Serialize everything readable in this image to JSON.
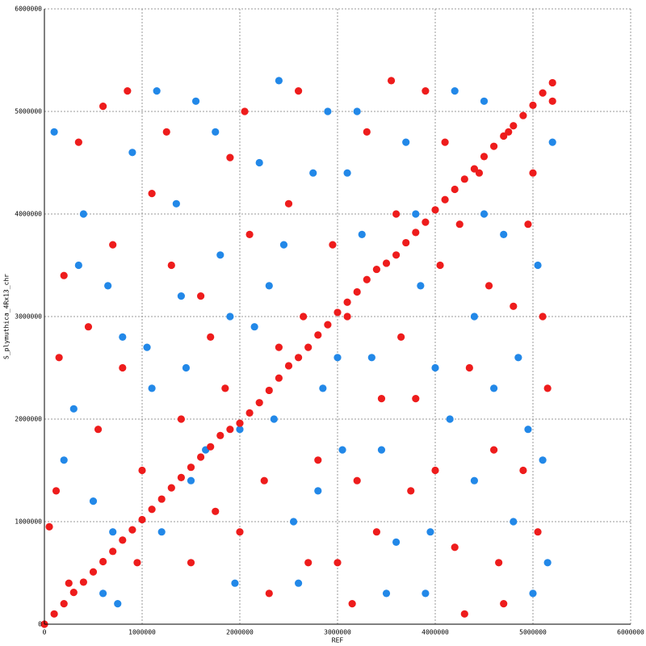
{
  "chart_data": {
    "type": "scatter",
    "x_label": "REF",
    "y_label": "S_plymuthica_4Rx13_chr",
    "xlim": [
      0,
      6000000
    ],
    "ylim": [
      0,
      6000000
    ],
    "xticks": [
      0,
      1000000,
      2000000,
      3000000,
      4000000,
      5000000,
      6000000
    ],
    "yticks": [
      0,
      1000000,
      2000000,
      3000000,
      4000000,
      5000000,
      6000000
    ],
    "grid": true,
    "series": [
      {
        "color": "#ee1c1c",
        "x": [
          120000,
          50000,
          200000,
          350000,
          600000,
          800000,
          1100000,
          950000,
          1400000,
          1600000,
          1750000,
          1900000,
          2100000,
          2300000,
          2400000,
          2600000,
          2800000,
          3000000,
          3100000,
          3300000,
          3450000,
          3600000,
          3750000,
          3900000,
          4050000,
          4200000,
          4350000,
          4450000,
          4600000,
          4700000,
          4800000,
          4950000,
          5050000,
          5150000,
          5200000,
          250000,
          550000,
          700000,
          1000000,
          1250000,
          1500000,
          1850000,
          2050000,
          2250000,
          2500000,
          2700000,
          2950000,
          3200000,
          3400000,
          3550000,
          3800000,
          4000000,
          4100000,
          4300000,
          4550000,
          4750000,
          4900000,
          5100000,
          150000,
          450000,
          1300000,
          1700000,
          2000000,
          2650000,
          3150000,
          3650000,
          4250000,
          4650000,
          5000000,
          850000
        ],
        "y": [
          1300000,
          950000,
          3400000,
          4700000,
          5050000,
          2500000,
          4200000,
          600000,
          2000000,
          3200000,
          1100000,
          4550000,
          3800000,
          300000,
          2700000,
          5200000,
          1600000,
          600000,
          3000000,
          4800000,
          2200000,
          4000000,
          1300000,
          5200000,
          3500000,
          750000,
          2500000,
          4400000,
          1700000,
          200000,
          3100000,
          3900000,
          900000,
          2300000,
          5100000,
          400000,
          1900000,
          3700000,
          1500000,
          4800000,
          600000,
          2300000,
          5000000,
          1400000,
          4100000,
          600000,
          3700000,
          1400000,
          900000,
          5300000,
          2200000,
          1500000,
          4700000,
          100000,
          3300000,
          4800000,
          1500000,
          3000000,
          2600000,
          2900000,
          3500000,
          2800000,
          900000,
          3000000,
          200000,
          2800000,
          3900000,
          600000,
          4400000,
          5200000
        ]
      },
      {
        "color": "#2288e8",
        "x": [
          100000,
          300000,
          400000,
          500000,
          650000,
          750000,
          900000,
          1050000,
          1200000,
          1350000,
          1450000,
          1550000,
          1650000,
          1800000,
          1950000,
          2150000,
          2200000,
          2350000,
          2450000,
          2550000,
          2750000,
          2850000,
          2900000,
          3050000,
          3250000,
          3350000,
          3500000,
          3700000,
          3850000,
          3950000,
          4150000,
          4400000,
          4500000,
          4700000,
          4850000,
          5000000,
          5100000,
          5200000,
          200000,
          600000,
          800000,
          1150000,
          1400000,
          1750000,
          2000000,
          2300000,
          2600000,
          2800000,
          3000000,
          3200000,
          3450000,
          3600000,
          3800000,
          4000000,
          4200000,
          4400000,
          4600000,
          4800000,
          5050000,
          5150000,
          350000,
          700000,
          1100000,
          1500000,
          1900000,
          2400000,
          3100000,
          3900000,
          4500000,
          4950000
        ],
        "y": [
          4800000,
          2100000,
          4000000,
          1200000,
          3300000,
          200000,
          4600000,
          2700000,
          900000,
          4100000,
          2500000,
          5100000,
          1700000,
          3600000,
          400000,
          2900000,
          4500000,
          2000000,
          3700000,
          1000000,
          4400000,
          2300000,
          5000000,
          1700000,
          3800000,
          2600000,
          300000,
          4700000,
          3300000,
          900000,
          2000000,
          1400000,
          5100000,
          3800000,
          2600000,
          300000,
          1600000,
          4700000,
          1600000,
          300000,
          2800000,
          5200000,
          3200000,
          4800000,
          1900000,
          3300000,
          400000,
          1300000,
          2600000,
          5000000,
          1700000,
          800000,
          4000000,
          2500000,
          5200000,
          3000000,
          2300000,
          1000000,
          3500000,
          600000,
          3500000,
          900000,
          2300000,
          1400000,
          3000000,
          5300000,
          4400000,
          300000,
          4000000,
          1900000
        ]
      },
      {
        "color": "#ee1c1c",
        "x": [
          0,
          100000,
          200000,
          300000,
          400000,
          500000,
          600000,
          700000,
          800000,
          900000,
          1000000,
          1100000,
          1200000,
          1300000,
          1400000,
          1500000,
          1600000,
          1700000,
          1800000,
          1900000,
          2000000,
          2100000,
          2200000,
          2300000,
          2400000,
          2500000,
          2600000,
          2700000,
          2800000,
          2900000,
          3000000,
          3100000,
          3200000,
          3300000,
          3400000,
          3500000,
          3600000,
          3700000,
          3800000,
          3900000,
          4000000,
          4100000,
          4200000,
          4300000,
          4400000,
          4500000,
          4600000,
          4700000,
          4800000,
          4900000,
          5000000,
          5100000,
          5200000
        ],
        "y": [
          0,
          100000,
          200000,
          310000,
          410000,
          510000,
          610000,
          710000,
          820000,
          920000,
          1020000,
          1120000,
          1220000,
          1330000,
          1430000,
          1530000,
          1630000,
          1730000,
          1840000,
          1900000,
          1960000,
          2060000,
          2160000,
          2280000,
          2400000,
          2520000,
          2600000,
          2700000,
          2820000,
          2920000,
          3040000,
          3140000,
          3240000,
          3360000,
          3460000,
          3520000,
          3600000,
          3720000,
          3820000,
          3920000,
          4040000,
          4140000,
          4240000,
          4340000,
          4440000,
          4560000,
          4660000,
          4760000,
          4860000,
          4960000,
          5060000,
          5180000,
          5280000
        ]
      }
    ]
  }
}
